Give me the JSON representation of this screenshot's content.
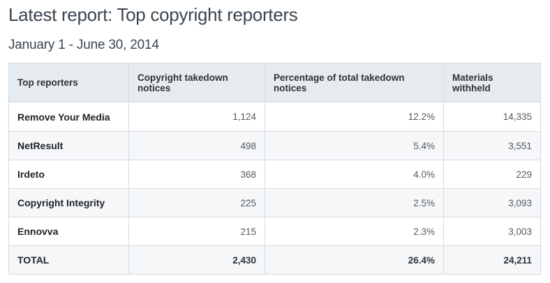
{
  "page": {
    "title": "Latest report: Top copyright reporters",
    "date_range": "January 1 - June 30, 2014"
  },
  "table": {
    "headers": [
      "Top reporters",
      "Copyright takedown notices",
      "Percentage of total takedown notices",
      "Materials withheld"
    ],
    "rows": [
      {
        "reporter": "Remove Your Media",
        "notices": "1,124",
        "percentage": "12.2%",
        "withheld": "14,335"
      },
      {
        "reporter": "NetResult",
        "notices": "498",
        "percentage": "5.4%",
        "withheld": "3,551"
      },
      {
        "reporter": "Irdeto",
        "notices": "368",
        "percentage": "4.0%",
        "withheld": "229"
      },
      {
        "reporter": "Copyright Integrity",
        "notices": "225",
        "percentage": "2.5%",
        "withheld": "3,093"
      },
      {
        "reporter": "Ennovva",
        "notices": "215",
        "percentage": "2.3%",
        "withheld": "3,003"
      }
    ],
    "total": {
      "reporter": "TOTAL",
      "notices": "2,430",
      "percentage": "26.4%",
      "withheld": "24,211"
    }
  }
}
